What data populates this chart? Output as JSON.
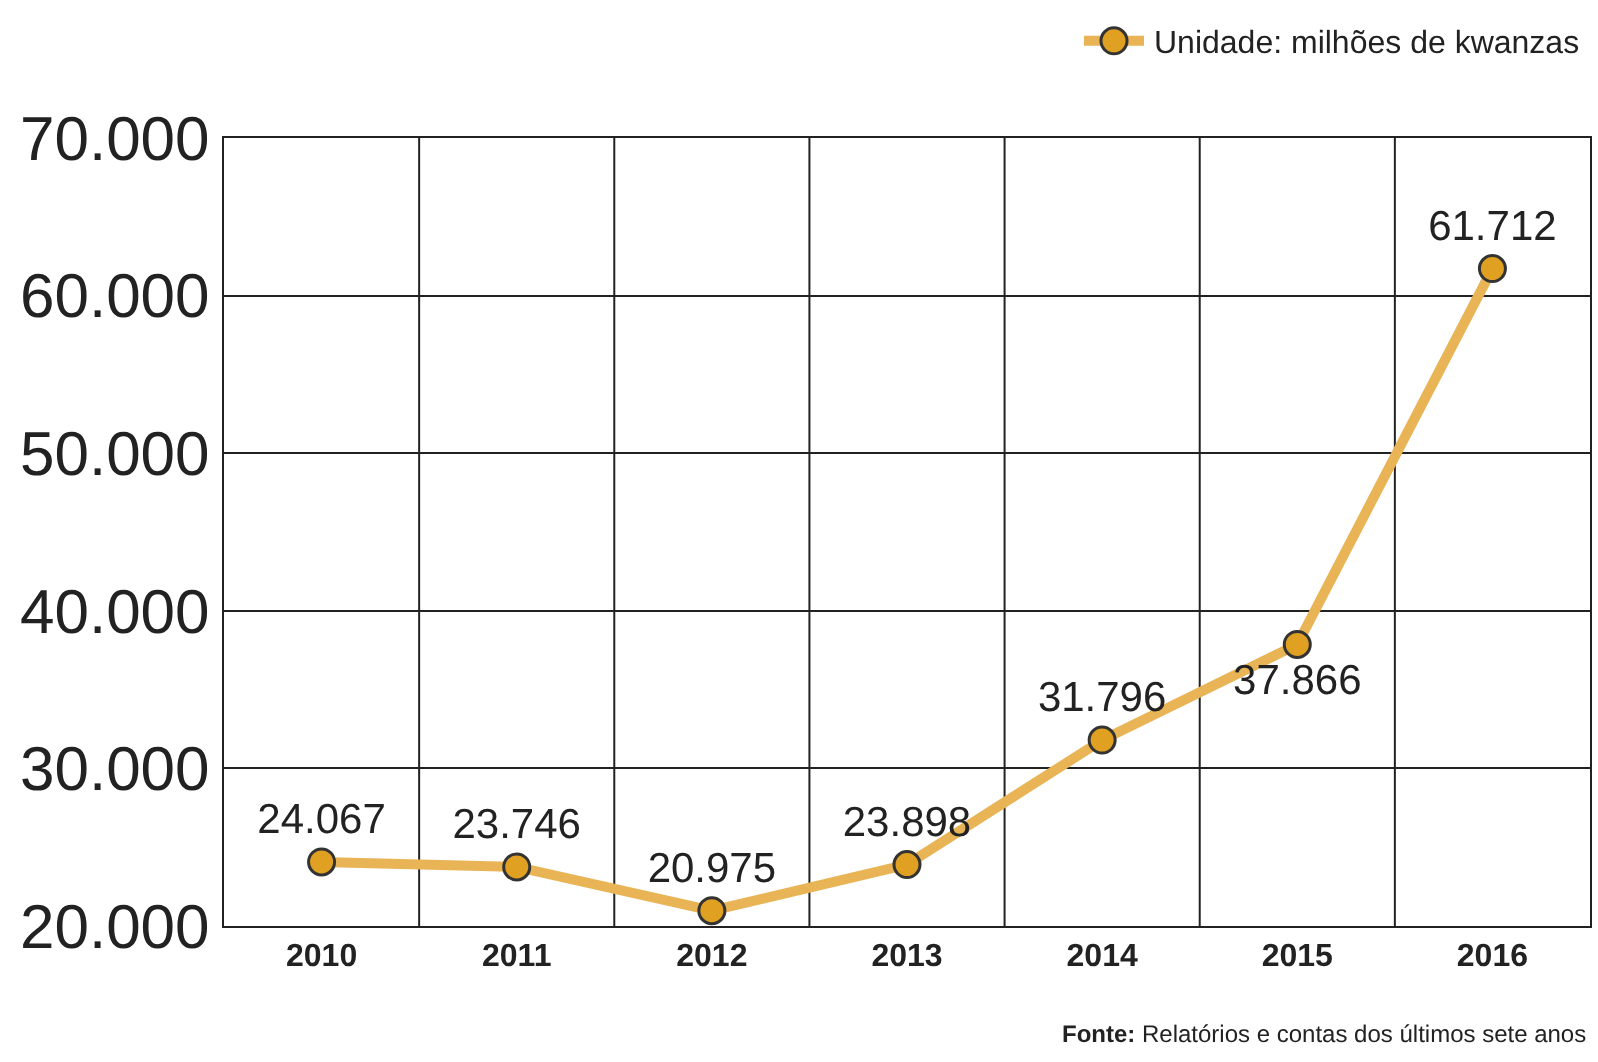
{
  "chart_data": {
    "type": "line",
    "categories": [
      "2010",
      "2011",
      "2012",
      "2013",
      "2014",
      "2015",
      "2016"
    ],
    "series": [
      {
        "name": "Unidade: milhões de kwanzas",
        "color": "#e8b456",
        "values": [
          24067,
          23746,
          20975,
          23898,
          31796,
          37866,
          61712
        ]
      }
    ],
    "value_labels": [
      "24.067",
      "23.746",
      "20.975",
      "23.898",
      "31.796",
      "37.866",
      "61.712"
    ],
    "ylim": [
      20000,
      70000
    ],
    "yticks": [
      {
        "value": 20000,
        "label": "20.000"
      },
      {
        "value": 30000,
        "label": "30.000"
      },
      {
        "value": 40000,
        "label": "40.000"
      },
      {
        "value": 50000,
        "label": "50.000"
      },
      {
        "value": 60000,
        "label": "60.000"
      },
      {
        "value": 70000,
        "label": "70.000"
      }
    ],
    "grid": true,
    "legend": "top right",
    "marker": "circle",
    "line_style": "solid",
    "annotations": [
      "Fonte: Relatórios e contas dos últimos sete anos"
    ]
  }
}
